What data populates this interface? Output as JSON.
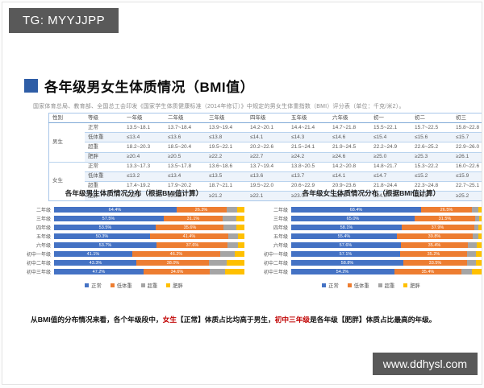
{
  "page": {
    "tg_badge": "TG: MYYJJPP",
    "watermark": "www.ddhysl.com"
  },
  "header": {
    "title": "各年级男女生体质情况（BMI值）",
    "subtitle": "国家体育总局、教育部、全国总工会印发《国家学生体质健康标准（2014年修订）》中规定的男女生体重指数（BMI）评分表（单位：千克/米2）。"
  },
  "colors": {
    "accent_blue": "#2E5DA6",
    "series_normal": "#4472C4",
    "series_underweight": "#ED7D31",
    "series_overweight": "#A5A5A5",
    "series_obese": "#FFC000",
    "highlight_red": "#C00000",
    "badge_bg": "#595959"
  },
  "table": {
    "headers": [
      "性别",
      "等级",
      "一年级",
      "二年级",
      "三年级",
      "四年级",
      "五年级",
      "六年级",
      "初一",
      "初二",
      "初三"
    ],
    "groups": [
      {
        "gender": "男生",
        "rows": [
          {
            "level": "正常",
            "values": [
              "13.5~18.1",
              "13.7~18.4",
              "13.9~19.4",
              "14.2~20.1",
              "14.4~21.4",
              "14.7~21.8",
              "15.5~22.1",
              "15.7~22.5",
              "15.8~22.8"
            ]
          },
          {
            "level": "低体重",
            "values": [
              "≤13.4",
              "≤13.6",
              "≤13.8",
              "≤14.1",
              "≤14.3",
              "≤14.6",
              "≤15.4",
              "≤15.6",
              "≤15.7"
            ]
          },
          {
            "level": "超重",
            "values": [
              "18.2~20.3",
              "18.5~20.4",
              "19.5~22.1",
              "20.2~22.6",
              "21.5~24.1",
              "21.9~24.5",
              "22.2~24.9",
              "22.6~25.2",
              "22.9~26.0"
            ]
          },
          {
            "level": "肥胖",
            "values": [
              "≥20.4",
              "≥20.5",
              "≥22.2",
              "≥22.7",
              "≥24.2",
              "≥24.6",
              "≥25.0",
              "≥25.3",
              "≥26.1"
            ]
          }
        ]
      },
      {
        "gender": "女生",
        "rows": [
          {
            "level": "正常",
            "values": [
              "13.3~17.3",
              "13.5~17.8",
              "13.6~18.6",
              "13.7~19.4",
              "13.8~20.5",
              "14.2~20.8",
              "14.8~21.7",
              "15.3~22.2",
              "16.0~22.6"
            ]
          },
          {
            "level": "低体重",
            "values": [
              "≤13.2",
              "≤13.4",
              "≤13.5",
              "≤13.6",
              "≤13.7",
              "≤14.1",
              "≤14.7",
              "≤15.2",
              "≤15.9"
            ]
          },
          {
            "level": "超重",
            "values": [
              "17.4~19.2",
              "17.9~20.2",
              "18.7~21.1",
              "19.5~22.0",
              "20.6~22.9",
              "20.9~23.6",
              "21.8~24.4",
              "22.3~24.8",
              "22.7~25.1"
            ]
          },
          {
            "level": "肥胖",
            "values": [
              "≥19.3",
              "≥20.3",
              "≥21.2",
              "≥22.1",
              "≥23.0",
              "≥23.7",
              "≥24.5",
              "≥24.9",
              "≥25.2"
            ]
          }
        ]
      }
    ]
  },
  "chart_data": [
    {
      "type": "bar",
      "orientation": "horizontal-stacked-100",
      "title": "各年级男生体质情况分布（根据BMI值计算）",
      "categories": [
        "二年级",
        "三年级",
        "四年级",
        "五年级",
        "六年级",
        "初中一年级",
        "初中二年级",
        "初中三年级"
      ],
      "xlim": [
        0,
        100
      ],
      "legend_position": "bottom",
      "series": [
        {
          "name": "正常",
          "color": "#4472C4",
          "values": [
            64.4,
            57.5,
            53.5,
            50.3,
            53.7,
            41.1,
            43.3,
            47.2
          ],
          "labels": [
            "64.4%",
            "57.5%",
            "53.5%",
            "50.3%",
            "53.7%",
            "41.1%",
            "43.3%",
            "47.2%"
          ]
        },
        {
          "name": "低体重",
          "color": "#ED7D31",
          "values": [
            26.3,
            31.1,
            35.6,
            41.4,
            37.6,
            46.2,
            38.0,
            34.6
          ],
          "labels": [
            "26.3%",
            "31.1%",
            "35.6%",
            "41.4%",
            "37.6%",
            "46.2%",
            "38.0%",
            "34.6%"
          ]
        },
        {
          "name": "超重",
          "color": "#A5A5A5",
          "values": [
            5.5,
            7.0,
            6.5,
            4.9,
            5.2,
            7.6,
            9.4,
            8.0
          ],
          "labels": null
        },
        {
          "name": "肥胖",
          "color": "#FFC000",
          "values": [
            3.8,
            4.4,
            4.4,
            3.4,
            3.5,
            5.1,
            9.3,
            10.2
          ],
          "labels": null
        }
      ]
    },
    {
      "type": "bar",
      "orientation": "horizontal-stacked-100",
      "title": "各年级女生体质情况分布（根据BMI值计算）",
      "categories": [
        "二年级",
        "三年级",
        "四年级",
        "五年级",
        "六年级",
        "初中一年级",
        "初中二年级",
        "初中三年级"
      ],
      "xlim": [
        0,
        100
      ],
      "legend_position": "bottom",
      "series": [
        {
          "name": "正常",
          "color": "#4472C4",
          "values": [
            68.4,
            65.0,
            58.1,
            55.4,
            57.6,
            57.1,
            58.8,
            54.2
          ],
          "labels": [
            "68.4%",
            "65.0%",
            "58.1%",
            "55.4%",
            "57.6%",
            "57.1%",
            "58.8%",
            "54.2%"
          ]
        },
        {
          "name": "低体重",
          "color": "#ED7D31",
          "values": [
            26.5,
            31.5,
            37.9,
            39.8,
            35.4,
            35.2,
            33.5,
            35.4
          ],
          "labels": [
            "26.5%",
            "31.5%",
            "37.9%",
            "39.8%",
            "35.4%",
            "35.2%",
            "33.5%",
            "35.4%"
          ]
        },
        {
          "name": "超重",
          "color": "#A5A5A5",
          "values": [
            3.2,
            2.2,
            2.5,
            3.0,
            4.5,
            4.9,
            4.9,
            5.2
          ],
          "labels": null
        },
        {
          "name": "肥胖",
          "color": "#FFC000",
          "values": [
            1.9,
            1.3,
            1.5,
            1.8,
            2.5,
            2.8,
            2.8,
            5.2
          ],
          "labels": null
        }
      ]
    }
  ],
  "summary": {
    "parts": [
      {
        "text": "从BMI值的分布情况来看，各个年级段中，",
        "red": false
      },
      {
        "text": "女生",
        "red": true
      },
      {
        "text": "【正常】体质占比均高于男生，",
        "red": false
      },
      {
        "text": "初中三年级",
        "red": true
      },
      {
        "text": "是各年级【肥胖】体质占比最高的年级。",
        "red": false
      }
    ]
  }
}
